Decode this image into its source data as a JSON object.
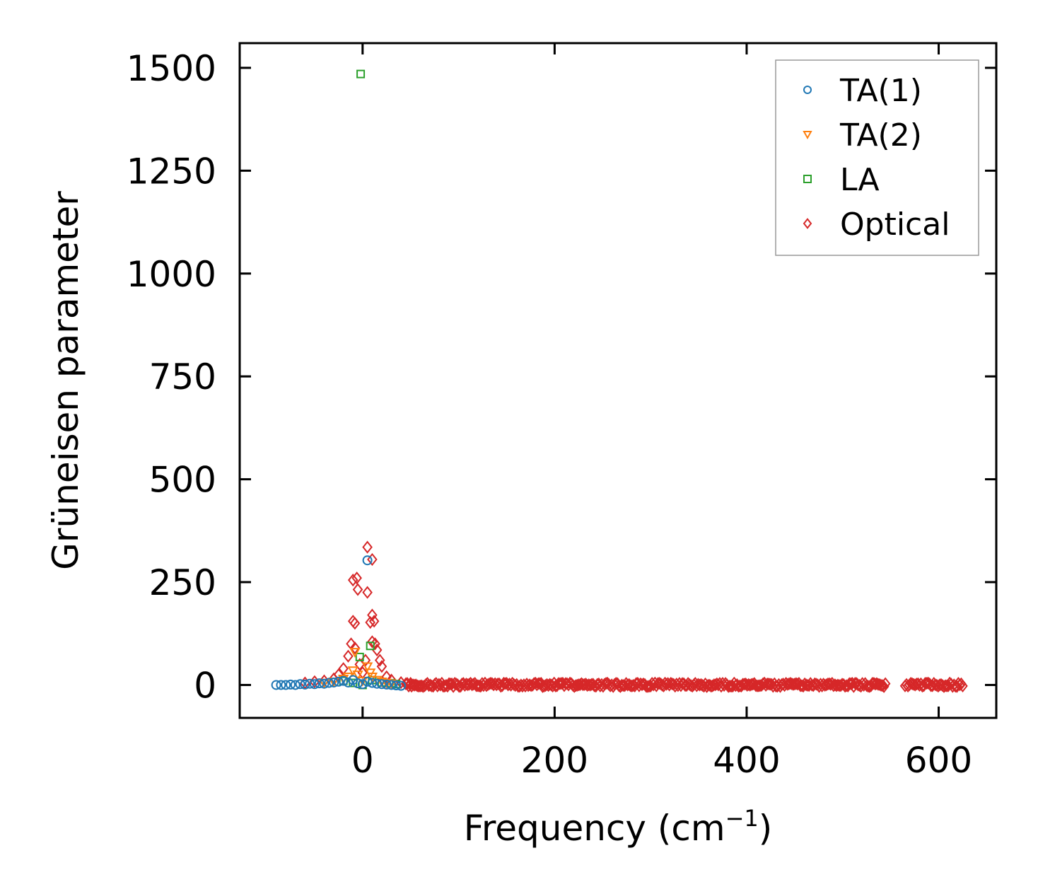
{
  "chart_data": {
    "type": "scatter",
    "title": "",
    "xlabel": "Frequency (cm",
    "xlabel_superscript": "−1",
    "xlabel_suffix": ")",
    "ylabel": "Grüneisen parameter",
    "xlim": [
      -128,
      660
    ],
    "ylim": [
      -80,
      1560
    ],
    "xticks": [
      0,
      200,
      400,
      600
    ],
    "xtick_labels": [
      "0",
      "200",
      "400",
      "600"
    ],
    "yticks": [
      0,
      250,
      500,
      750,
      1000,
      1250,
      1500
    ],
    "ytick_labels": [
      "0",
      "250",
      "500",
      "750",
      "1000",
      "1250",
      "1500"
    ],
    "grid": false,
    "legend_position": "top-right",
    "series": [
      {
        "name": "TA(1)",
        "color": "#1f77b4",
        "marker": "circle",
        "points": [
          [
            -90,
            0
          ],
          [
            -85,
            0
          ],
          [
            -80,
            0
          ],
          [
            -75,
            1
          ],
          [
            -70,
            0
          ],
          [
            -65,
            2
          ],
          [
            -60,
            1
          ],
          [
            -55,
            3
          ],
          [
            -50,
            2
          ],
          [
            -45,
            4
          ],
          [
            -40,
            3
          ],
          [
            -35,
            5
          ],
          [
            -30,
            6
          ],
          [
            -25,
            8
          ],
          [
            -20,
            10
          ],
          [
            -15,
            6
          ],
          [
            -10,
            12
          ],
          [
            -5,
            4
          ],
          [
            0,
            2
          ],
          [
            5,
            8
          ],
          [
            10,
            5
          ],
          [
            15,
            3
          ],
          [
            20,
            2
          ],
          [
            25,
            1
          ],
          [
            30,
            0
          ],
          [
            35,
            -1
          ],
          [
            40,
            -2
          ],
          [
            5,
            303
          ]
        ]
      },
      {
        "name": "TA(2)",
        "color": "#ff7f0e",
        "marker": "triangle-down",
        "points": [
          [
            -40,
            5
          ],
          [
            -30,
            8
          ],
          [
            -20,
            15
          ],
          [
            -15,
            20
          ],
          [
            -10,
            35
          ],
          [
            -8,
            80
          ],
          [
            -5,
            25
          ],
          [
            0,
            10
          ],
          [
            5,
            45
          ],
          [
            8,
            30
          ],
          [
            10,
            20
          ],
          [
            15,
            12
          ],
          [
            20,
            8
          ],
          [
            25,
            5
          ],
          [
            30,
            3
          ]
        ]
      },
      {
        "name": "LA",
        "color": "#2ca02c",
        "marker": "square",
        "points": [
          [
            -2,
            1485
          ],
          [
            -3,
            68
          ],
          [
            8,
            95
          ],
          [
            -20,
            10
          ],
          [
            -10,
            5
          ],
          [
            0,
            0
          ],
          [
            10,
            12
          ],
          [
            20,
            6
          ],
          [
            30,
            4
          ],
          [
            35,
            2
          ]
        ]
      },
      {
        "name": "Optical",
        "color": "#d62728",
        "marker": "diamond",
        "points": [
          [
            5,
            335
          ],
          [
            10,
            305
          ],
          [
            -10,
            255
          ],
          [
            -6,
            260
          ],
          [
            -5,
            232
          ],
          [
            5,
            225
          ],
          [
            -10,
            155
          ],
          [
            -8,
            150
          ],
          [
            10,
            170
          ],
          [
            8,
            152
          ],
          [
            12,
            155
          ],
          [
            -12,
            100
          ],
          [
            10,
            105
          ],
          [
            13,
            100
          ],
          [
            -8,
            90
          ],
          [
            15,
            85
          ],
          [
            -15,
            70
          ],
          [
            18,
            60
          ],
          [
            20,
            45
          ],
          [
            -20,
            40
          ],
          [
            -25,
            25
          ],
          [
            25,
            20
          ],
          [
            30,
            12
          ],
          [
            -30,
            15
          ],
          [
            -40,
            10
          ],
          [
            -50,
            8
          ],
          [
            -60,
            5
          ],
          [
            40,
            6
          ],
          [
            50,
            4
          ],
          [
            -3,
            50
          ],
          [
            3,
            60
          ],
          [
            0,
            30
          ]
        ],
        "band": {
          "x_ranges": [
            [
              45,
              545
            ],
            [
              565,
              625
            ]
          ],
          "y_range": [
            -10,
            12
          ]
        }
      }
    ]
  }
}
